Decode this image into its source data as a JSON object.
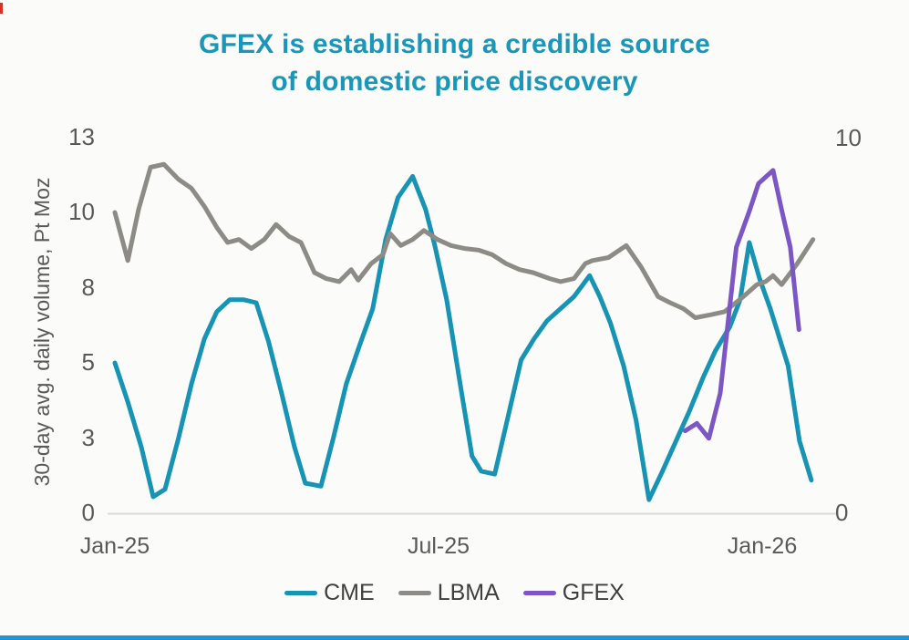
{
  "title": {
    "line1": "GFEX is establishing a credible source",
    "line2": "of domestic price discovery",
    "color": "#1a97b8"
  },
  "accents": {
    "background": "#fbfbfa",
    "tick_text": "#595959",
    "legend_text": "#3f3f3f",
    "baseline": "#d9d9d9",
    "bottom_bar": "#2196d3",
    "red_corner_tick": "#d93025"
  },
  "chart_data": {
    "type": "line",
    "title": "GFEX is establishing a credible source of domestic price discovery",
    "xlabel": "",
    "ylabel": "30-day avg. daily volume, Pt Moz",
    "grid": false,
    "legend_position": "bottom",
    "x_axis": {
      "unit": "months since Jan-25",
      "range_months": [
        0,
        13
      ],
      "tick_labels": [
        "Jan-25",
        "Jul-25",
        "Jan-26"
      ],
      "tick_positions_months": [
        0,
        6,
        12
      ]
    },
    "y_axis_left": {
      "label": "30-day avg. daily volume, Pt Moz",
      "tick_labels": [
        "0",
        "3",
        "5",
        "8",
        "10",
        "13"
      ],
      "tick_values": [
        0,
        2.5,
        5,
        7.5,
        10,
        12.5
      ],
      "range": [
        0,
        12.5
      ]
    },
    "y_axis_right": {
      "tick_labels": [
        "0",
        "10"
      ],
      "tick_values": [
        0,
        10
      ],
      "range": [
        0,
        10
      ]
    },
    "series": [
      {
        "name": "CME",
        "color": "#1793b4",
        "axis": "left",
        "points": [
          [
            0,
            5.0
          ],
          [
            0.24,
            3.7
          ],
          [
            0.49,
            2.2
          ],
          [
            0.71,
            0.55
          ],
          [
            0.93,
            0.8
          ],
          [
            1.18,
            2.5
          ],
          [
            1.42,
            4.3
          ],
          [
            1.66,
            5.8
          ],
          [
            1.89,
            6.7
          ],
          [
            2.13,
            7.1
          ],
          [
            2.38,
            7.1
          ],
          [
            2.62,
            7.0
          ],
          [
            2.85,
            5.7
          ],
          [
            3.09,
            4.0
          ],
          [
            3.33,
            2.2
          ],
          [
            3.53,
            1.0
          ],
          [
            3.82,
            0.9
          ],
          [
            4.05,
            2.5
          ],
          [
            4.29,
            4.3
          ],
          [
            4.54,
            5.6
          ],
          [
            4.78,
            6.8
          ],
          [
            5.02,
            9.1
          ],
          [
            5.25,
            10.5
          ],
          [
            5.52,
            11.2
          ],
          [
            5.76,
            10.1
          ],
          [
            5.93,
            8.9
          ],
          [
            6.15,
            7.1
          ],
          [
            6.4,
            4.3
          ],
          [
            6.62,
            1.9
          ],
          [
            6.79,
            1.4
          ],
          [
            7.04,
            1.3
          ],
          [
            7.3,
            3.3
          ],
          [
            7.53,
            5.1
          ],
          [
            7.77,
            5.8
          ],
          [
            8.01,
            6.4
          ],
          [
            8.26,
            6.8
          ],
          [
            8.51,
            7.2
          ],
          [
            8.8,
            7.9
          ],
          [
            8.99,
            7.2
          ],
          [
            9.19,
            6.3
          ],
          [
            9.43,
            4.9
          ],
          [
            9.66,
            3.1
          ],
          [
            9.9,
            0.45
          ],
          [
            10.15,
            1.4
          ],
          [
            10.4,
            2.4
          ],
          [
            10.65,
            3.4
          ],
          [
            10.9,
            4.5
          ],
          [
            11.13,
            5.4
          ],
          [
            11.4,
            6.2
          ],
          [
            11.59,
            7.1
          ],
          [
            11.76,
            9.0
          ],
          [
            11.95,
            7.8
          ],
          [
            12.15,
            6.8
          ],
          [
            12.48,
            4.9
          ],
          [
            12.69,
            2.4
          ],
          [
            12.91,
            1.1
          ]
        ]
      },
      {
        "name": "LBMA",
        "color": "#8d8b85",
        "axis": "left",
        "points": [
          [
            0,
            10.0
          ],
          [
            0.24,
            8.4
          ],
          [
            0.44,
            10.1
          ],
          [
            0.66,
            11.5
          ],
          [
            0.91,
            11.6
          ],
          [
            1.18,
            11.1
          ],
          [
            1.42,
            10.8
          ],
          [
            1.66,
            10.2
          ],
          [
            1.89,
            9.5
          ],
          [
            2.09,
            9.0
          ],
          [
            2.3,
            9.1
          ],
          [
            2.53,
            8.8
          ],
          [
            2.77,
            9.1
          ],
          [
            2.99,
            9.6
          ],
          [
            3.23,
            9.2
          ],
          [
            3.45,
            9.0
          ],
          [
            3.7,
            8.0
          ],
          [
            3.92,
            7.8
          ],
          [
            4.16,
            7.7
          ],
          [
            4.38,
            8.1
          ],
          [
            4.51,
            7.75
          ],
          [
            4.75,
            8.3
          ],
          [
            4.97,
            8.6
          ],
          [
            5.1,
            9.3
          ],
          [
            5.3,
            8.9
          ],
          [
            5.52,
            9.1
          ],
          [
            5.73,
            9.4
          ],
          [
            5.98,
            9.1
          ],
          [
            6.23,
            8.9
          ],
          [
            6.49,
            8.8
          ],
          [
            6.74,
            8.75
          ],
          [
            6.99,
            8.6
          ],
          [
            7.25,
            8.3
          ],
          [
            7.5,
            8.1
          ],
          [
            7.75,
            8.0
          ],
          [
            8.06,
            7.8
          ],
          [
            8.26,
            7.7
          ],
          [
            8.51,
            7.8
          ],
          [
            8.72,
            8.3
          ],
          [
            8.85,
            8.4
          ],
          [
            9.15,
            8.5
          ],
          [
            9.48,
            8.9
          ],
          [
            9.75,
            8.2
          ],
          [
            10.07,
            7.2
          ],
          [
            10.29,
            7.0
          ],
          [
            10.54,
            6.8
          ],
          [
            10.76,
            6.5
          ],
          [
            11.05,
            6.6
          ],
          [
            11.3,
            6.7
          ],
          [
            11.65,
            7.2
          ],
          [
            11.9,
            7.6
          ],
          [
            12.06,
            7.7
          ],
          [
            12.2,
            7.9
          ],
          [
            12.36,
            7.6
          ],
          [
            12.65,
            8.3
          ],
          [
            12.94,
            9.1
          ]
        ]
      },
      {
        "name": "GFEX",
        "color": "#7d56c5",
        "axis": "right",
        "points": [
          [
            10.57,
            2.2
          ],
          [
            10.79,
            2.4
          ],
          [
            11.01,
            2.0
          ],
          [
            11.22,
            3.2
          ],
          [
            11.52,
            7.1
          ],
          [
            11.77,
            8.1
          ],
          [
            11.93,
            8.8
          ],
          [
            12.2,
            9.15
          ],
          [
            12.36,
            8.1
          ],
          [
            12.52,
            7.1
          ],
          [
            12.68,
            4.9
          ]
        ]
      }
    ]
  }
}
